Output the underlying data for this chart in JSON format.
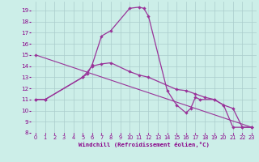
{
  "xlabel": "Windchill (Refroidissement éolien,°C)",
  "background_color": "#cceee8",
  "grid_color": "#aacccc",
  "line_color": "#993399",
  "xlim": [
    -0.5,
    23.5
  ],
  "ylim": [
    8,
    19.8
  ],
  "xticks": [
    0,
    1,
    2,
    3,
    4,
    5,
    6,
    7,
    8,
    9,
    10,
    11,
    12,
    13,
    14,
    15,
    16,
    17,
    18,
    19,
    20,
    21,
    22,
    23
  ],
  "yticks": [
    8,
    9,
    10,
    11,
    12,
    13,
    14,
    15,
    16,
    17,
    18,
    19
  ],
  "curve1_x": [
    0,
    1,
    5,
    5.5,
    6,
    7,
    8,
    10,
    11,
    11.5,
    12,
    14,
    15,
    16,
    16.5,
    17,
    17.5,
    19,
    20,
    21,
    22,
    23
  ],
  "curve1_y": [
    11,
    11,
    13,
    13.3,
    14.1,
    16.7,
    17.2,
    19.2,
    19.3,
    19.2,
    18.5,
    11.8,
    10.5,
    9.8,
    10.2,
    11.2,
    11.0,
    11.0,
    10.5,
    8.5,
    8.5,
    8.5
  ],
  "curve2_x": [
    0,
    1,
    5,
    6,
    7,
    8,
    10,
    11,
    12,
    15,
    16,
    17,
    18,
    19,
    20,
    21,
    22,
    23
  ],
  "curve2_y": [
    11,
    11,
    13,
    14.0,
    14.2,
    14.3,
    13.5,
    13.2,
    13.0,
    11.9,
    11.8,
    11.5,
    11.2,
    11.0,
    10.5,
    10.2,
    8.5,
    8.5
  ],
  "line_x": [
    0,
    23
  ],
  "line_y": [
    15.0,
    8.5
  ]
}
